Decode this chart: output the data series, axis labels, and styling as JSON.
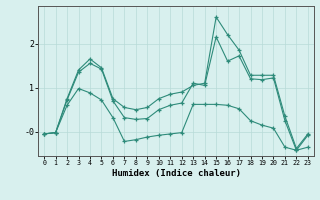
{
  "xlabel": "Humidex (Indice chaleur)",
  "x": [
    0,
    1,
    2,
    3,
    4,
    5,
    6,
    7,
    8,
    9,
    10,
    11,
    12,
    13,
    14,
    15,
    16,
    17,
    18,
    19,
    20,
    21,
    22,
    23
  ],
  "series": [
    [
      -0.05,
      -0.02,
      0.75,
      1.4,
      1.65,
      1.45,
      0.75,
      0.55,
      0.5,
      0.55,
      0.75,
      0.85,
      0.9,
      1.05,
      1.1,
      2.6,
      2.2,
      1.85,
      1.28,
      1.28,
      1.28,
      0.35,
      -0.38,
      -0.05
    ],
    [
      -0.05,
      -0.02,
      0.72,
      1.35,
      1.55,
      1.42,
      0.7,
      0.32,
      0.28,
      0.3,
      0.5,
      0.6,
      0.65,
      1.1,
      1.05,
      2.15,
      1.6,
      1.72,
      1.2,
      1.18,
      1.22,
      0.25,
      -0.42,
      -0.08
    ],
    [
      -0.05,
      -0.02,
      0.6,
      0.98,
      0.88,
      0.72,
      0.32,
      -0.22,
      -0.18,
      -0.12,
      -0.08,
      -0.05,
      -0.02,
      0.62,
      0.62,
      0.62,
      0.6,
      0.52,
      0.25,
      0.15,
      0.08,
      -0.35,
      -0.42,
      -0.35
    ]
  ],
  "line_color": "#2e8b7a",
  "bg_color": "#d8f0ee",
  "grid_color": "#b8dbd8",
  "ylim": [
    -0.55,
    2.85
  ],
  "xlim": [
    -0.5,
    23.5
  ]
}
